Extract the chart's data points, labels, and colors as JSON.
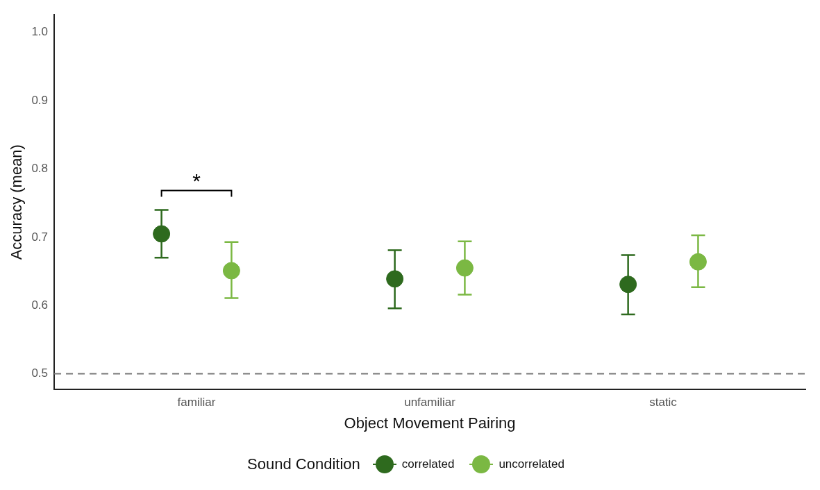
{
  "chart_data": {
    "type": "scatter",
    "xlabel": "Object Movement Pairing",
    "ylabel": "Accuracy (mean)",
    "legend_title": "Sound Condition",
    "categories": [
      "familiar",
      "unfamiliar",
      "static"
    ],
    "series": [
      {
        "name": "correlated",
        "color": "#2e6a1e",
        "values": [
          0.705,
          0.639,
          0.631
        ],
        "errors": [
          [
            0.67,
            0.74
          ],
          [
            0.596,
            0.681
          ],
          [
            0.587,
            0.674
          ]
        ]
      },
      {
        "name": "uncorrelated",
        "color": "#7bb843",
        "values": [
          0.651,
          0.655,
          0.664
        ],
        "errors": [
          [
            0.611,
            0.693
          ],
          [
            0.616,
            0.694
          ],
          [
            0.627,
            0.703
          ]
        ]
      }
    ],
    "ylim": [
      0.477,
      1.026
    ],
    "yticks": [
      {
        "value": 0.5,
        "label": "0.5"
      },
      {
        "value": 0.6,
        "label": "0.6"
      },
      {
        "value": 0.7,
        "label": "0.7"
      },
      {
        "value": 0.8,
        "label": "0.8"
      },
      {
        "value": 0.9,
        "label": "0.9"
      },
      {
        "value": 1.0,
        "label": "1.0"
      }
    ],
    "ref_lines": [
      {
        "axis": "y",
        "value": 0.5,
        "color": "#777777",
        "line_style": "dashed"
      }
    ],
    "annotations": [
      "*"
    ],
    "grid": false,
    "legend": "bottom",
    "marker": "circle"
  }
}
